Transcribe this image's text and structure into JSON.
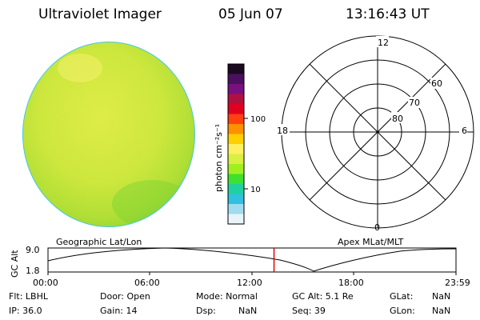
{
  "header": {
    "instrument": "Ultraviolet Imager",
    "date": "05 Jun 07",
    "time": "13:16:43 UT"
  },
  "colorbar": {
    "unit_label": "photon cm⁻²s⁻¹",
    "tick_labels": [
      "100",
      "10"
    ],
    "colors": [
      "#1a0a20",
      "#4a1060",
      "#7a1080",
      "#b01040",
      "#e00020",
      "#ff4010",
      "#ff9000",
      "#ffd000",
      "#fff060",
      "#d8f040",
      "#a0f020",
      "#40e030",
      "#20d0a0",
      "#30c0e0",
      "#a0dcf0",
      "#e8f4f8"
    ]
  },
  "polar_plot": {
    "clock_labels": [
      "12",
      "6",
      "0",
      "18"
    ],
    "latitude_labels": [
      "60",
      "70",
      "80"
    ]
  },
  "timeline": {
    "left_title": "Geographic Lat/Lon",
    "right_title": "Apex  MLat/MLT",
    "y_axis_label": "GC Alt",
    "y_ticks": [
      "9.0",
      "1.8"
    ],
    "x_ticks": [
      "00:00",
      "06:00",
      "12:00",
      "18:00",
      "23:59"
    ],
    "current_time_fraction": 0.554
  },
  "status": {
    "flt": "Flt: LBHL",
    "ip": "IP: 36.0",
    "door": "Door: Open",
    "gain": "Gain: 14",
    "mode": "Mode: Normal",
    "dsp": "Dsp:",
    "dsp_value": "NaN",
    "gc_alt": "GC Alt: 5.1 Re",
    "seq": "Seq: 39",
    "glat": "GLat:",
    "glat_value": "NaN",
    "glon": "GLon:",
    "glon_value": "NaN"
  }
}
